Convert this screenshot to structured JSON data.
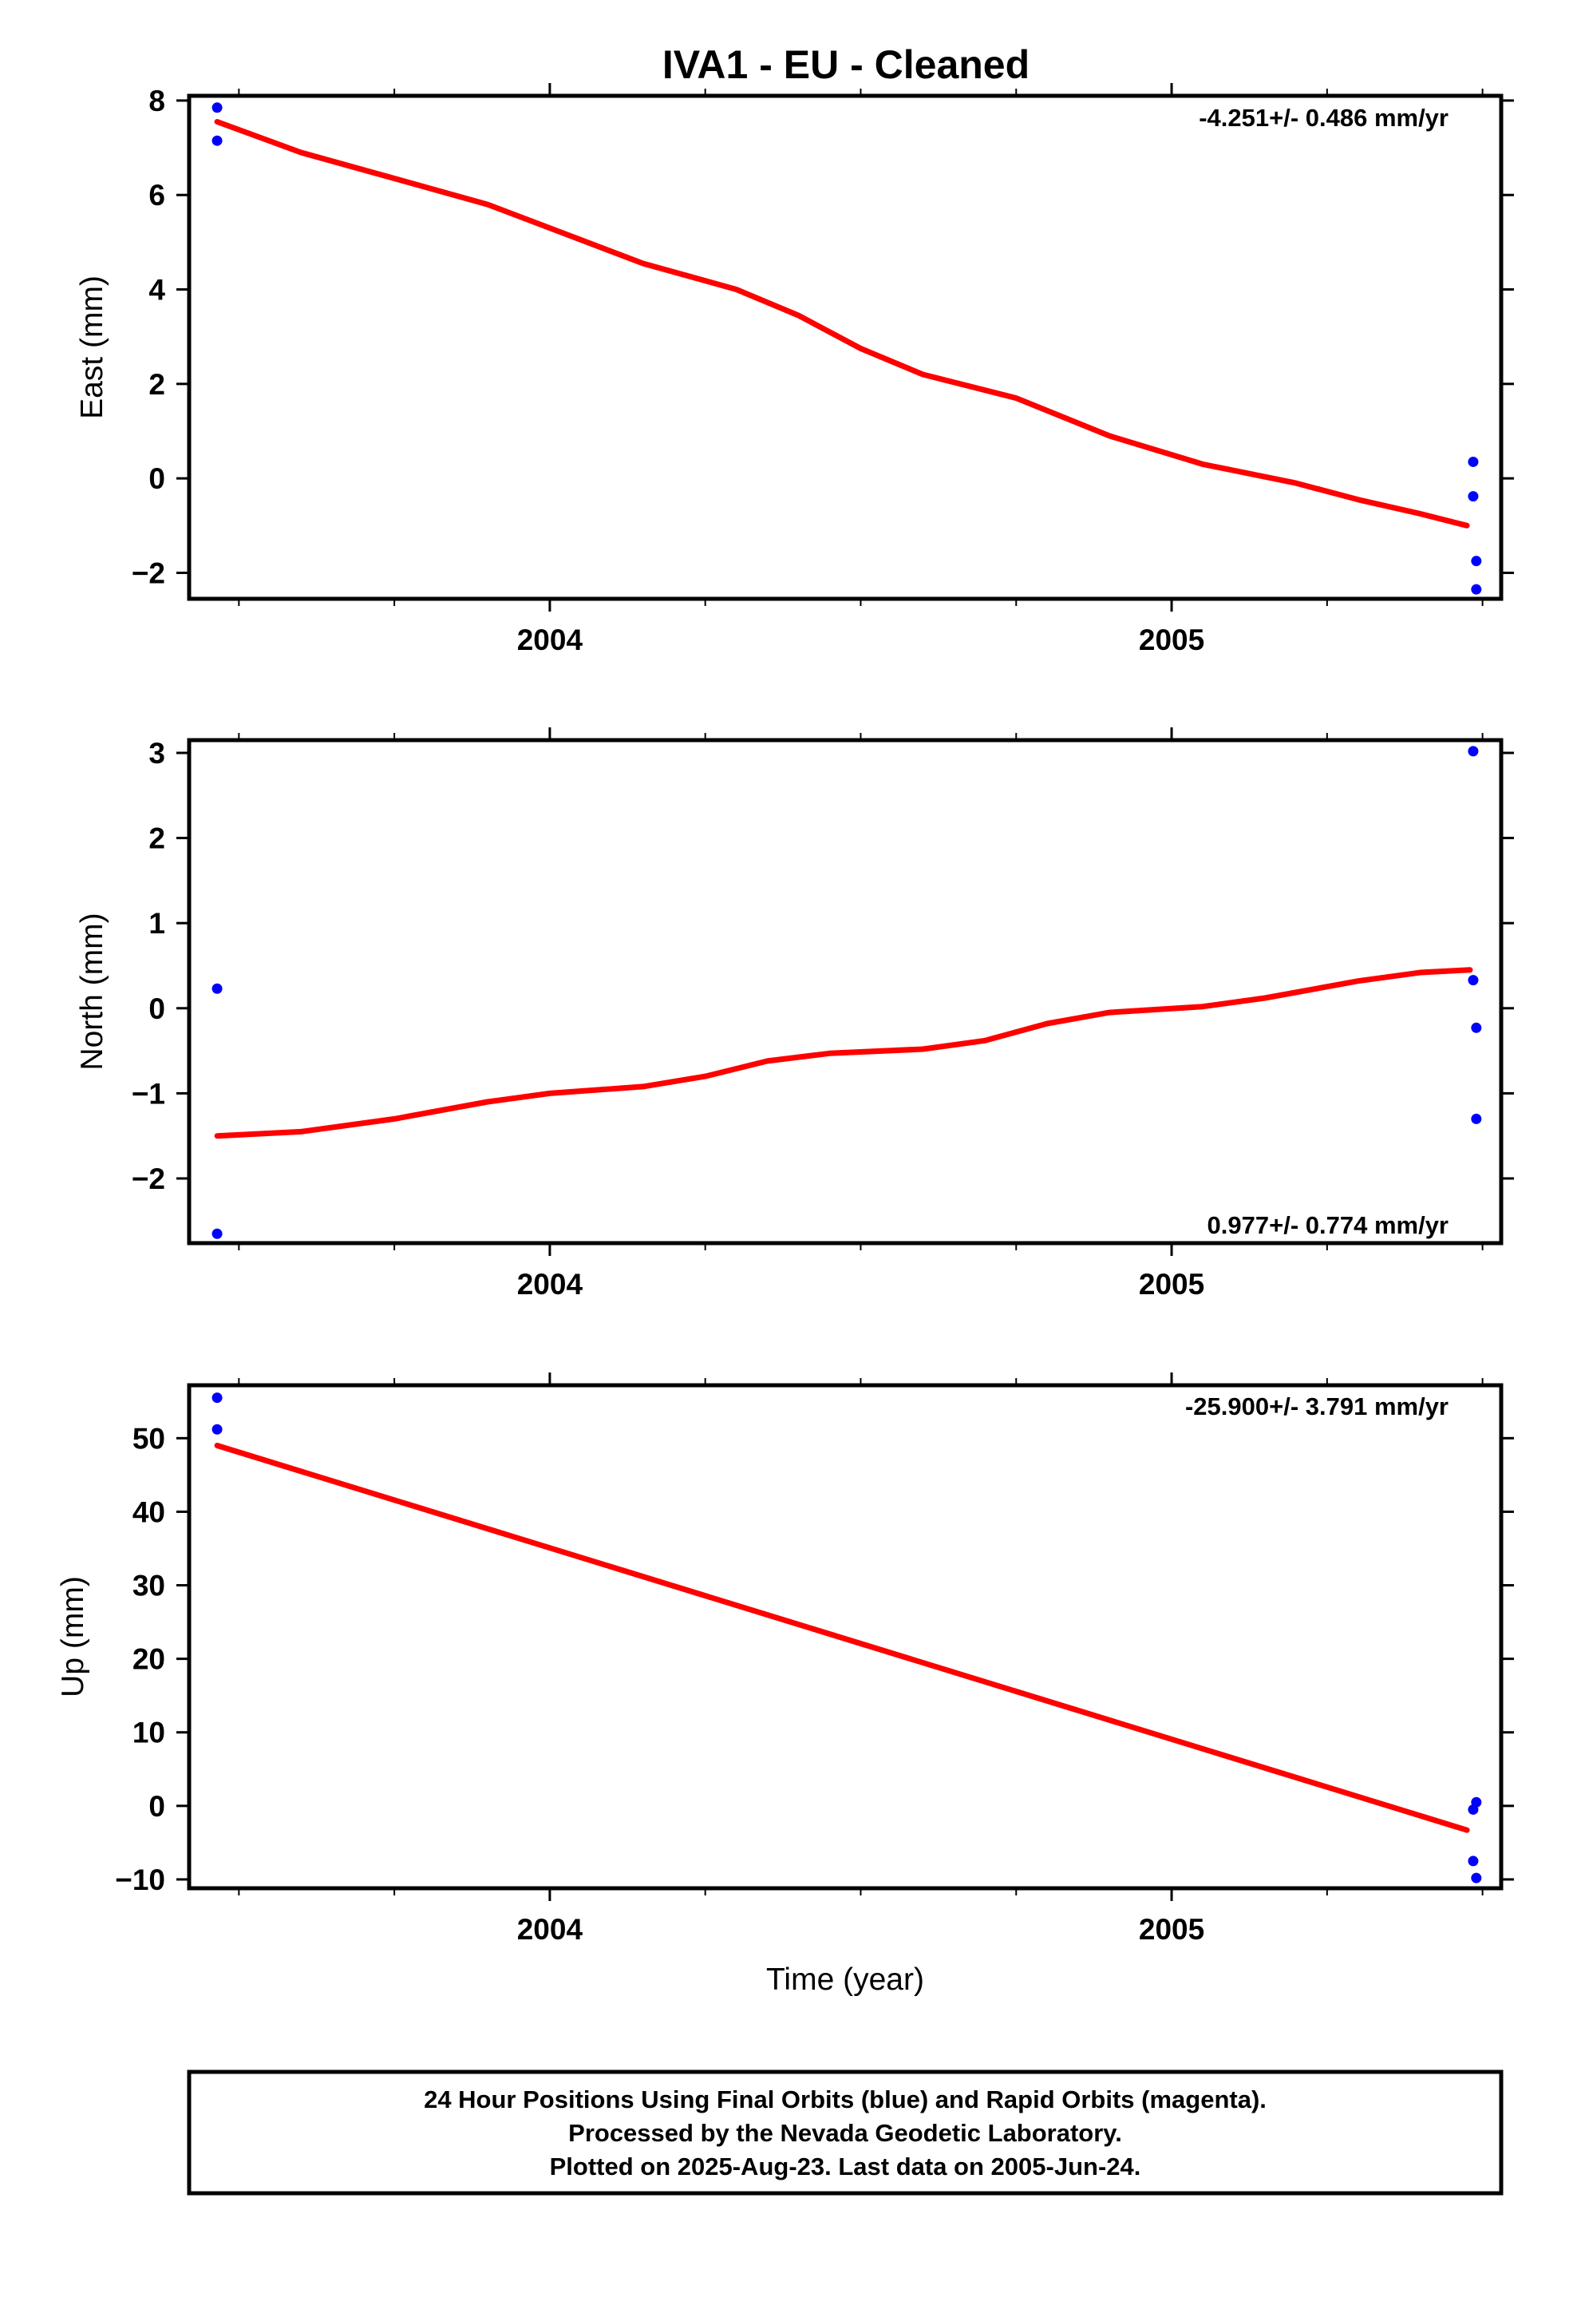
{
  "title": "IVA1  - EU - Cleaned",
  "xlabel": "Time (year)",
  "footer": {
    "line1": "24 Hour Positions Using Final Orbits (blue) and Rapid Orbits (magenta).",
    "line2": "Processed by the Nevada Geodetic Laboratory.",
    "line3": "Plotted on 2025-Aug-23. Last data on 2005-Jun-24."
  },
  "colors": {
    "points": "#0000ff",
    "fit": "#ff0000",
    "axes": "#000000"
  },
  "chart_data": [
    {
      "type": "scatter",
      "panel": "east",
      "ylabel": "East (mm)",
      "rate_label": "-4.251+/- 0.486 mm/yr",
      "rate_position": "top-right",
      "xlim": [
        2003.42,
        2005.53
      ],
      "ylim": [
        -2.55,
        8.1
      ],
      "x_ticks": [
        2004,
        2005
      ],
      "x_minor_ticks": [
        2003.5,
        2003.75,
        2004.25,
        2004.5,
        2004.75,
        2005.25,
        2005.5
      ],
      "y_ticks": [
        -2,
        0,
        2,
        4,
        6,
        8
      ],
      "y_tick_labels": [
        "−2",
        "0",
        "2",
        "4",
        "6",
        "8"
      ],
      "grid": false,
      "points": [
        [
          2003.465,
          7.85
        ],
        [
          2003.465,
          7.15
        ],
        [
          2005.485,
          0.35
        ],
        [
          2005.485,
          -0.38
        ],
        [
          2005.49,
          -1.75
        ],
        [
          2005.49,
          -2.35
        ]
      ],
      "fit": [
        [
          2003.465,
          7.55
        ],
        [
          2003.6,
          6.9
        ],
        [
          2003.75,
          6.35
        ],
        [
          2003.9,
          5.8
        ],
        [
          2004.0,
          5.3
        ],
        [
          2004.15,
          4.55
        ],
        [
          2004.3,
          4.0
        ],
        [
          2004.4,
          3.45
        ],
        [
          2004.5,
          2.75
        ],
        [
          2004.6,
          2.2
        ],
        [
          2004.75,
          1.7
        ],
        [
          2004.9,
          0.9
        ],
        [
          2005.05,
          0.3
        ],
        [
          2005.2,
          -0.1
        ],
        [
          2005.3,
          -0.45
        ],
        [
          2005.4,
          -0.75
        ],
        [
          2005.475,
          -1.0
        ]
      ]
    },
    {
      "type": "scatter",
      "panel": "north",
      "ylabel": "North (mm)",
      "rate_label": "0.977+/- 0.774 mm/yr",
      "rate_position": "bottom-right",
      "xlim": [
        2003.42,
        2005.53
      ],
      "ylim": [
        -2.76,
        3.15
      ],
      "x_ticks": [
        2004,
        2005
      ],
      "x_minor_ticks": [
        2003.5,
        2003.75,
        2004.25,
        2004.5,
        2004.75,
        2005.25,
        2005.5
      ],
      "y_ticks": [
        -2,
        -1,
        0,
        1,
        2,
        3
      ],
      "y_tick_labels": [
        "−2",
        "−1",
        "0",
        "1",
        "2",
        "3"
      ],
      "grid": false,
      "points": [
        [
          2003.465,
          0.23
        ],
        [
          2003.465,
          -2.65
        ],
        [
          2005.485,
          3.02
        ],
        [
          2005.485,
          0.33
        ],
        [
          2005.49,
          -0.23
        ],
        [
          2005.49,
          -1.3
        ]
      ],
      "fit": [
        [
          2003.465,
          -1.5
        ],
        [
          2003.6,
          -1.45
        ],
        [
          2003.75,
          -1.3
        ],
        [
          2003.9,
          -1.1
        ],
        [
          2004.0,
          -1.0
        ],
        [
          2004.15,
          -0.92
        ],
        [
          2004.25,
          -0.8
        ],
        [
          2004.35,
          -0.62
        ],
        [
          2004.45,
          -0.53
        ],
        [
          2004.6,
          -0.48
        ],
        [
          2004.7,
          -0.38
        ],
        [
          2004.8,
          -0.18
        ],
        [
          2004.9,
          -0.05
        ],
        [
          2005.05,
          0.02
        ],
        [
          2005.15,
          0.12
        ],
        [
          2005.3,
          0.32
        ],
        [
          2005.4,
          0.42
        ],
        [
          2005.48,
          0.45
        ]
      ]
    },
    {
      "type": "scatter",
      "panel": "up",
      "ylabel": "Up (mm)",
      "rate_label": "-25.900+/- 3.791 mm/yr",
      "rate_position": "top-right",
      "xlim": [
        2003.42,
        2005.53
      ],
      "ylim": [
        -11.2,
        57.2
      ],
      "x_ticks": [
        2004,
        2005
      ],
      "x_minor_ticks": [
        2003.5,
        2003.75,
        2004.25,
        2004.5,
        2004.75,
        2005.25,
        2005.5
      ],
      "y_ticks": [
        -10,
        0,
        10,
        20,
        30,
        40,
        50
      ],
      "y_tick_labels": [
        "−10",
        "0",
        "10",
        "20",
        "30",
        "40",
        "50"
      ],
      "grid": false,
      "points": [
        [
          2003.465,
          55.5
        ],
        [
          2003.465,
          51.2
        ],
        [
          2005.485,
          -0.5
        ],
        [
          2005.49,
          0.5
        ],
        [
          2005.485,
          -7.5
        ],
        [
          2005.49,
          -9.8
        ]
      ],
      "fit": [
        [
          2003.465,
          49.0
        ],
        [
          2005.475,
          -3.3
        ]
      ]
    }
  ]
}
